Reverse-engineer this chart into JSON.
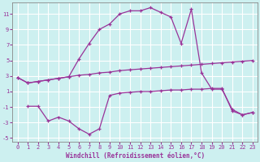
{
  "xlabel": "Windchill (Refroidissement éolien,°C)",
  "background_color": "#cdf0f0",
  "grid_color": "#ffffff",
  "line_color": "#993399",
  "ylim": [
    -5.5,
    12.5
  ],
  "xlim": [
    -0.5,
    23.5
  ],
  "yticks": [
    -5,
    -3,
    -1,
    1,
    3,
    5,
    7,
    9,
    11
  ],
  "xticks": [
    0,
    1,
    2,
    3,
    4,
    5,
    6,
    7,
    8,
    9,
    10,
    11,
    12,
    13,
    14,
    15,
    16,
    17,
    18,
    19,
    20,
    21,
    22,
    23
  ],
  "upper_x": [
    0,
    1,
    2,
    3,
    4,
    5,
    6,
    7,
    8,
    9,
    10,
    11,
    12,
    13,
    14,
    15,
    16,
    17,
    18,
    19,
    20,
    21,
    22,
    23
  ],
  "upper_y": [
    2.8,
    2.1,
    2.3,
    2.5,
    2.7,
    2.9,
    3.1,
    3.2,
    3.4,
    3.5,
    3.7,
    3.8,
    3.9,
    4.0,
    4.1,
    4.2,
    4.3,
    4.4,
    4.5,
    4.6,
    4.7,
    4.8,
    4.9,
    5.0
  ],
  "main_x": [
    0,
    1,
    2,
    3,
    4,
    5,
    6,
    7,
    8,
    9,
    10,
    11,
    12,
    13,
    14,
    15,
    16,
    17,
    18,
    19,
    20,
    21,
    22,
    23
  ],
  "main_y": [
    2.8,
    2.1,
    2.3,
    2.5,
    2.7,
    2.9,
    5.2,
    7.2,
    9.0,
    9.7,
    11.0,
    11.4,
    11.4,
    11.8,
    11.2,
    10.6,
    7.2,
    11.6,
    3.4,
    1.3,
    1.3,
    -1.3,
    -2.0,
    -1.7
  ],
  "bot_x": [
    1,
    2,
    3,
    4,
    5,
    6,
    7,
    8,
    9,
    10,
    11,
    12,
    13,
    14,
    15,
    16,
    17,
    18,
    19,
    20,
    21,
    22,
    23
  ],
  "bot_y": [
    -0.9,
    -0.9,
    -2.8,
    -2.3,
    -2.8,
    -3.8,
    -4.5,
    -3.8,
    0.5,
    0.8,
    0.9,
    1.0,
    1.0,
    1.1,
    1.2,
    1.2,
    1.3,
    1.3,
    1.4,
    1.4,
    -1.5,
    -2.0,
    -1.7
  ]
}
